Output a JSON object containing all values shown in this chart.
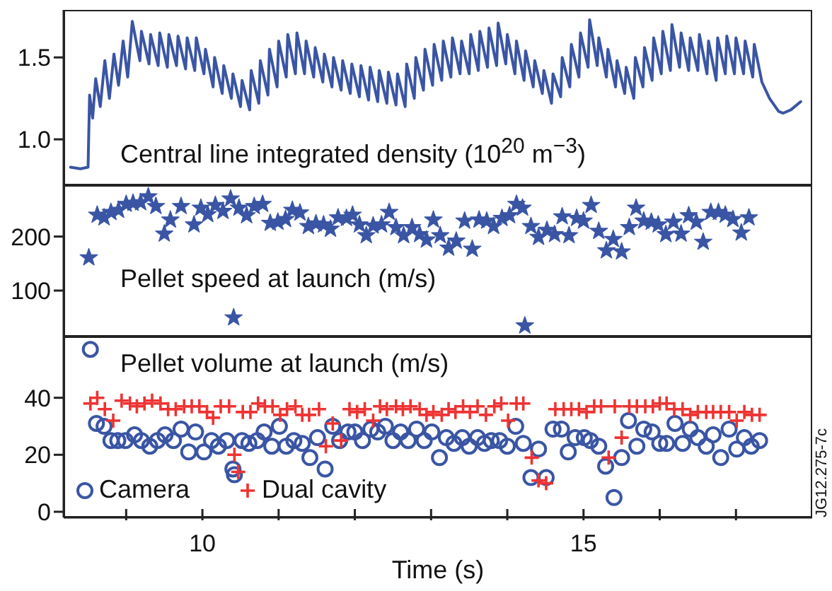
{
  "chart_data": [
    {
      "type": "line",
      "annotations": [
        "Central line integrated density (10$^{20}$ m$^{−3}$)"
      ],
      "xlim": [
        8.18,
        18.0
      ],
      "ylim": [
        0.72,
        1.79
      ],
      "yticks": [
        {
          "value": 1,
          "label": "1.0"
        },
        1.5
      ],
      "tick_labels": "y",
      "series": [
        {
          "color": "#3a55a4",
          "x": [
            8.27,
            8.4,
            8.5,
            8.52,
            8.56,
            8.6,
            8.66,
            8.72,
            8.78,
            8.84,
            8.9,
            8.96,
            9.02,
            9.08,
            9.18,
            9.2,
            9.3,
            9.32,
            9.42,
            9.44,
            9.54,
            9.56,
            9.66,
            9.68,
            9.78,
            9.8,
            9.9,
            9.92,
            10.02,
            10.04,
            10.14,
            10.16,
            10.26,
            10.28,
            10.38,
            10.4,
            10.5,
            10.52,
            10.62,
            10.64,
            10.74,
            10.76,
            10.86,
            10.88,
            10.98,
            11.0,
            11.1,
            11.12,
            11.22,
            11.24,
            11.34,
            11.36,
            11.46,
            11.48,
            11.58,
            11.6,
            11.7,
            11.72,
            11.82,
            11.84,
            11.94,
            11.96,
            12.06,
            12.08,
            12.18,
            12.2,
            12.3,
            12.32,
            12.42,
            12.44,
            12.54,
            12.56,
            12.66,
            12.68,
            12.78,
            12.8,
            12.9,
            12.92,
            13.02,
            13.04,
            13.14,
            13.16,
            13.26,
            13.28,
            13.38,
            13.4,
            13.5,
            13.52,
            13.62,
            13.64,
            13.74,
            13.76,
            13.86,
            13.88,
            13.98,
            14.0,
            14.1,
            14.12,
            14.22,
            14.24,
            14.34,
            14.36,
            14.46,
            14.48,
            14.58,
            14.6,
            14.7,
            14.72,
            14.82,
            14.84,
            14.94,
            14.96,
            15.06,
            15.08,
            15.18,
            15.2,
            15.3,
            15.32,
            15.42,
            15.44,
            15.54,
            15.56,
            15.66,
            15.68,
            15.78,
            15.8,
            15.9,
            15.92,
            16.02,
            16.04,
            16.14,
            16.16,
            16.26,
            16.28,
            16.38,
            16.4,
            16.5,
            16.52,
            16.62,
            16.64,
            16.74,
            16.76,
            16.86,
            16.88,
            16.98,
            17.0,
            17.1,
            17.12,
            17.22,
            17.24,
            17.34,
            17.44,
            17.56,
            17.62,
            17.72,
            17.85
          ],
          "values": [
            0.83,
            0.82,
            0.83,
            1.27,
            1.13,
            1.37,
            1.2,
            1.48,
            1.25,
            1.52,
            1.33,
            1.6,
            1.38,
            1.72,
            1.48,
            1.66,
            1.46,
            1.64,
            1.45,
            1.65,
            1.44,
            1.64,
            1.45,
            1.63,
            1.43,
            1.62,
            1.42,
            1.62,
            1.4,
            1.55,
            1.32,
            1.5,
            1.28,
            1.45,
            1.25,
            1.4,
            1.2,
            1.36,
            1.18,
            1.42,
            1.22,
            1.48,
            1.27,
            1.55,
            1.32,
            1.6,
            1.38,
            1.64,
            1.4,
            1.65,
            1.4,
            1.6,
            1.38,
            1.56,
            1.35,
            1.52,
            1.32,
            1.5,
            1.3,
            1.48,
            1.28,
            1.46,
            1.26,
            1.45,
            1.24,
            1.44,
            1.23,
            1.42,
            1.22,
            1.41,
            1.21,
            1.4,
            1.2,
            1.46,
            1.25,
            1.5,
            1.3,
            1.55,
            1.33,
            1.58,
            1.36,
            1.6,
            1.38,
            1.62,
            1.4,
            1.6,
            1.4,
            1.64,
            1.42,
            1.66,
            1.44,
            1.68,
            1.45,
            1.71,
            1.46,
            1.64,
            1.4,
            1.6,
            1.36,
            1.54,
            1.32,
            1.48,
            1.28,
            1.42,
            1.22,
            1.4,
            1.26,
            1.5,
            1.32,
            1.58,
            1.38,
            1.65,
            1.44,
            1.73,
            1.45,
            1.62,
            1.38,
            1.55,
            1.32,
            1.48,
            1.28,
            1.44,
            1.25,
            1.5,
            1.32,
            1.56,
            1.36,
            1.62,
            1.4,
            1.66,
            1.42,
            1.7,
            1.44,
            1.65,
            1.42,
            1.62,
            1.42,
            1.64,
            1.4,
            1.6,
            1.36,
            1.62,
            1.4,
            1.63,
            1.4,
            1.62,
            1.4,
            1.6,
            1.38,
            1.58,
            1.35,
            1.25,
            1.17,
            1.16,
            1.18,
            1.23
          ]
        }
      ]
    },
    {
      "type": "scatter",
      "marker": "star",
      "annotations": [
        "Pellet speed at launch (m/s)"
      ],
      "xlim": [
        8.18,
        18.0
      ],
      "ylim": [
        15,
        295
      ],
      "yticks": [
        100,
        200
      ],
      "tick_labels": "y",
      "series": [
        {
          "color": "#3a55a4",
          "x": [
            8.51,
            8.62,
            8.71,
            8.8,
            8.9,
            9.0,
            9.09,
            9.19,
            9.29,
            9.39,
            9.5,
            9.58,
            9.72,
            9.89,
            9.98,
            10.07,
            10.17,
            10.27,
            10.37,
            10.41,
            10.48,
            10.58,
            10.68,
            10.79,
            10.89,
            10.99,
            11.09,
            11.18,
            11.28,
            11.39,
            11.49,
            11.59,
            11.68,
            11.78,
            11.89,
            11.97,
            12.06,
            12.15,
            12.24,
            12.35,
            12.45,
            12.54,
            12.64,
            12.75,
            12.85,
            12.94,
            13.03,
            13.12,
            13.23,
            13.33,
            13.44,
            13.54,
            13.63,
            13.73,
            13.82,
            13.93,
            14.03,
            14.12,
            14.2,
            14.23,
            14.31,
            14.41,
            14.52,
            14.62,
            14.72,
            14.81,
            14.91,
            15.0,
            15.1,
            15.2,
            15.3,
            15.39,
            15.5,
            15.6,
            15.69,
            15.79,
            15.89,
            15.98,
            16.08,
            16.18,
            16.28,
            16.38,
            16.48,
            16.57,
            16.67,
            16.77,
            16.86,
            16.96,
            17.07,
            17.17
          ],
          "values": [
            161,
            240,
            235,
            245,
            249,
            260,
            262,
            263,
            274,
            256,
            205,
            231,
            256,
            222,
            253,
            241,
            258,
            247,
            270,
            50,
            253,
            239,
            256,
            260,
            225,
            227,
            232,
            249,
            244,
            219,
            224,
            222,
            214,
            235,
            234,
            240,
            222,
            202,
            220,
            222,
            245,
            217,
            202,
            217,
            204,
            194,
            231,
            202,
            179,
            192,
            229,
            177,
            231,
            229,
            219,
            234,
            239,
            260,
            253,
            35,
            219,
            199,
            212,
            204,
            237,
            202,
            234,
            229,
            258,
            210,
            174,
            195,
            172,
            217,
            253,
            229,
            227,
            222,
            204,
            227,
            205,
            239,
            227,
            190,
            245,
            245,
            240,
            232,
            207,
            235
          ]
        }
      ]
    },
    {
      "type": "scatter",
      "xlabel": "Time (s)",
      "annotations": [
        "Pellet volume at launch (m/s)",
        "JG12.275-7c"
      ],
      "legend": "bottom left",
      "xlim": [
        8.18,
        18.0
      ],
      "xticks": [
        {
          "value": 9,
          "label": null
        },
        10,
        {
          "value": 11,
          "label": null
        },
        {
          "value": 12,
          "label": null
        },
        {
          "value": 13,
          "label": null
        },
        {
          "value": 14,
          "label": null
        },
        15,
        {
          "value": 16,
          "label": null
        },
        {
          "value": 17,
          "label": null
        }
      ],
      "ylim": [
        -2,
        61.5
      ],
      "yticks": [
        0,
        20,
        40
      ],
      "series": [
        {
          "name": "Camera",
          "color": "#3a55a4",
          "marker": "circle",
          "x": [
            8.53,
            8.61,
            8.71,
            8.8,
            8.89,
            8.99,
            9.11,
            9.2,
            9.31,
            9.41,
            9.51,
            9.62,
            9.72,
            9.82,
            9.91,
            10.02,
            10.12,
            10.21,
            10.32,
            10.4,
            10.42,
            10.52,
            10.61,
            10.72,
            10.81,
            10.91,
            11.01,
            11.1,
            11.2,
            11.31,
            11.41,
            11.51,
            11.61,
            11.71,
            11.8,
            11.91,
            12.0,
            12.1,
            12.21,
            12.3,
            12.4,
            12.5,
            12.6,
            12.7,
            12.81,
            12.91,
            13.01,
            13.11,
            13.2,
            13.3,
            13.41,
            13.5,
            13.61,
            13.7,
            13.79,
            13.9,
            14.0,
            14.11,
            14.21,
            14.31,
            14.41,
            14.51,
            14.6,
            14.71,
            14.8,
            14.89,
            15.01,
            15.09,
            15.2,
            15.29,
            15.4,
            15.5,
            15.59,
            15.7,
            15.79,
            15.9,
            16.0,
            16.09,
            16.2,
            16.3,
            16.4,
            16.5,
            16.61,
            16.7,
            16.8,
            16.91,
            17.01,
            17.11,
            17.2,
            17.31
          ],
          "values": [
            57,
            31,
            30,
            25,
            25,
            25,
            27,
            25,
            23,
            25,
            27,
            25,
            29,
            21,
            28,
            21,
            25,
            23,
            25,
            15,
            13,
            25,
            24,
            25,
            28,
            23,
            30,
            23,
            25,
            24,
            19,
            26,
            15,
            30,
            25,
            28,
            28,
            25,
            29,
            28,
            30,
            25,
            28,
            25,
            29,
            25,
            28,
            19,
            26,
            24,
            26,
            23,
            26,
            24,
            25,
            25,
            23,
            30,
            24,
            12,
            22,
            12,
            29,
            29,
            21,
            26,
            26,
            25,
            23,
            16,
            5,
            19,
            32,
            23,
            29,
            28,
            24,
            24,
            31,
            24,
            29,
            26,
            23,
            27,
            19,
            29,
            22,
            26,
            23,
            25
          ]
        },
        {
          "name": "Dual cavity",
          "color": "#ee3333",
          "marker": "cross",
          "x": [
            8.53,
            8.62,
            8.72,
            8.83,
            8.94,
            9.05,
            9.14,
            9.24,
            9.34,
            9.45,
            9.55,
            9.65,
            9.76,
            9.86,
            9.96,
            10.06,
            10.14,
            10.24,
            10.35,
            10.42,
            10.47,
            10.53,
            10.63,
            10.73,
            10.82,
            10.92,
            11.02,
            11.11,
            11.22,
            11.31,
            11.4,
            11.53,
            11.62,
            11.71,
            11.82,
            11.93,
            12.03,
            12.13,
            12.24,
            12.33,
            12.42,
            12.54,
            12.63,
            12.73,
            12.85,
            12.94,
            13.03,
            13.14,
            13.23,
            13.32,
            13.42,
            13.51,
            13.61,
            13.72,
            13.83,
            13.92,
            14.01,
            14.12,
            14.21,
            14.32,
            14.41,
            14.51,
            14.63,
            14.74,
            14.84,
            14.94,
            15.04,
            15.14,
            15.23,
            15.33,
            15.41,
            15.5,
            15.6,
            15.7,
            15.81,
            15.91,
            16.0,
            16.09,
            16.19,
            16.3,
            16.4,
            16.5,
            16.61,
            16.7,
            16.8,
            16.91,
            17.01,
            17.11,
            17.21,
            17.31
          ],
          "values": [
            38,
            40,
            36,
            32,
            39,
            38,
            37,
            38,
            39,
            38,
            36,
            36,
            37,
            37,
            37,
            35,
            33,
            37,
            37,
            20,
            14,
            35,
            35,
            38,
            37,
            37,
            34,
            36,
            37,
            34,
            34,
            36,
            23,
            31,
            25,
            36,
            35,
            36,
            32,
            37,
            36,
            37,
            36,
            37,
            36,
            34,
            35,
            34,
            36,
            35,
            37,
            35,
            37,
            34,
            37,
            38,
            32,
            38,
            38,
            19,
            11,
            10,
            36,
            36,
            36,
            36,
            35,
            37,
            37,
            19,
            37,
            26,
            37,
            37,
            37,
            37,
            38,
            38,
            36,
            36,
            34,
            35,
            35,
            35,
            35,
            35,
            32,
            35,
            34,
            34
          ]
        }
      ]
    }
  ]
}
